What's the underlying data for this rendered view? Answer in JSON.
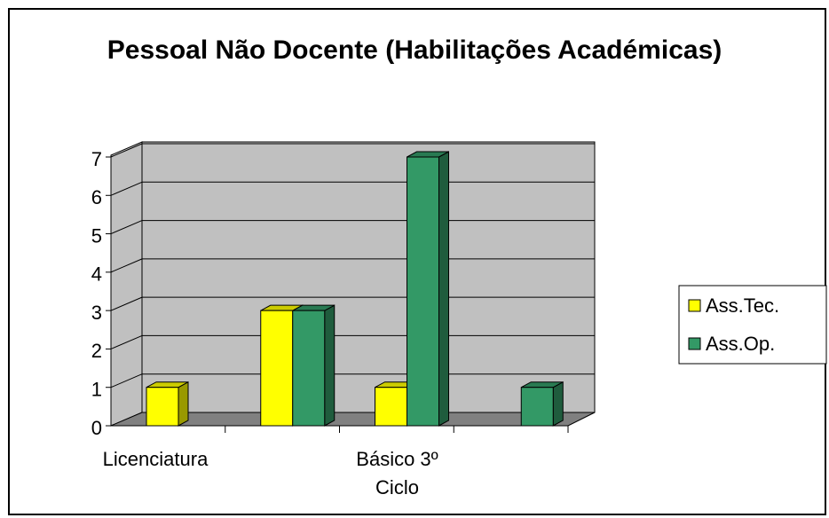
{
  "chart_data": {
    "type": "bar3d",
    "title": "Pessoal Não Docente (Habilitações Académicas)",
    "categories": [
      "Licenciatura",
      null,
      "Básico 3º Ciclo",
      null
    ],
    "series": [
      {
        "name": "Ass.Tec.",
        "color": "#ffff00",
        "values": [
          1,
          3,
          1,
          null
        ]
      },
      {
        "name": "Ass.Op.",
        "color": "#339966",
        "values": [
          null,
          3,
          7,
          1
        ]
      }
    ],
    "ylim": [
      0,
      7
    ],
    "yticks": [
      0,
      1,
      2,
      3,
      4,
      5,
      6,
      7
    ],
    "grid": true,
    "legend": "right"
  }
}
